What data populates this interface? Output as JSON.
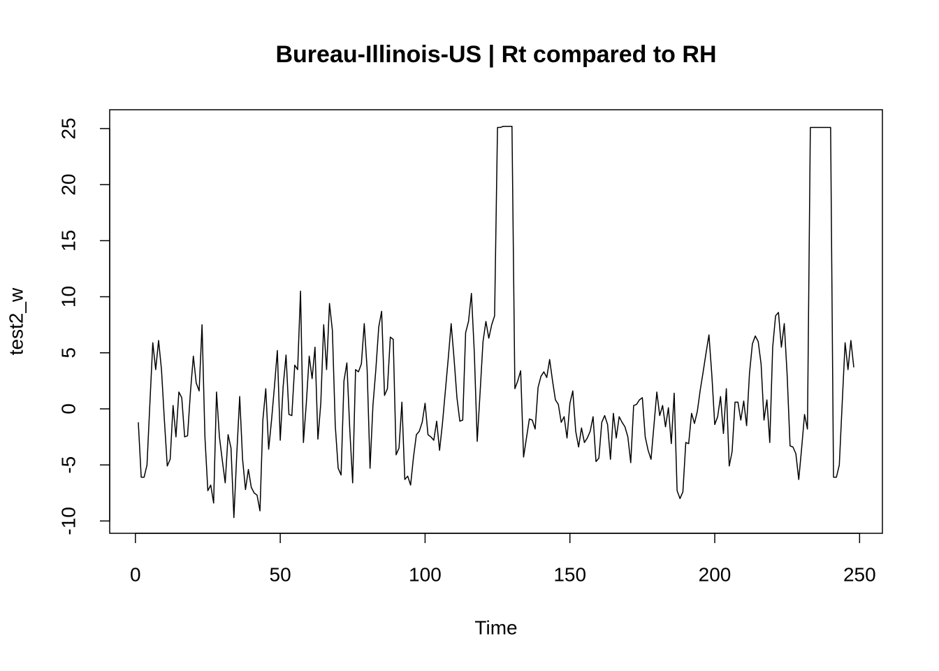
{
  "chart_data": {
    "type": "line",
    "title": "Bureau-Illinois-US | Rt compared to RH",
    "x_label": "Time",
    "y_label": "test2_w",
    "color": "#000000",
    "x": [
      1,
      2,
      3,
      4,
      5,
      6,
      7,
      8,
      9,
      10,
      11,
      12,
      13,
      14,
      15,
      16,
      17,
      18,
      19,
      20,
      21,
      22,
      23,
      24,
      25,
      26,
      27,
      28,
      29,
      30,
      31,
      32,
      33,
      34,
      35,
      36,
      37,
      38,
      39,
      40,
      41,
      42,
      43,
      44,
      45,
      46,
      47,
      48,
      49,
      50,
      51,
      52,
      53,
      54,
      55,
      56,
      57,
      58,
      59,
      60,
      61,
      62,
      63,
      64,
      65,
      66,
      67,
      68,
      69,
      70,
      71,
      72,
      73,
      74,
      75,
      76,
      77,
      78,
      79,
      80,
      81,
      82,
      83,
      84,
      85,
      86,
      87,
      88,
      89,
      90,
      91,
      92,
      93,
      94,
      95,
      96,
      97,
      98,
      99,
      100,
      101,
      102,
      103,
      104,
      105,
      106,
      107,
      108,
      109,
      110,
      111,
      112,
      113,
      114,
      115,
      116,
      117,
      118,
      119,
      120,
      121,
      122,
      123,
      124,
      125,
      126,
      127,
      128,
      129,
      130,
      131,
      132,
      133,
      134,
      135,
      136,
      137,
      138,
      139,
      140,
      141,
      142,
      143,
      144,
      145,
      146,
      147,
      148,
      149,
      150,
      151,
      152,
      153,
      154,
      155,
      156,
      157,
      158,
      159,
      160,
      161,
      162,
      163,
      164,
      165,
      166,
      167,
      168,
      169,
      170,
      171,
      172,
      173,
      174,
      175,
      176,
      177,
      178,
      179,
      180,
      181,
      182,
      183,
      184,
      185,
      186,
      187,
      188,
      189,
      190,
      191,
      192,
      193,
      194,
      195,
      196,
      197,
      198,
      199,
      200,
      201,
      202,
      203,
      204,
      205,
      206,
      207,
      208,
      209,
      210,
      211,
      212,
      213,
      214,
      215,
      216,
      217,
      218,
      219,
      220,
      221,
      222,
      223,
      224,
      225,
      226,
      227,
      228,
      229,
      230,
      231,
      232,
      233,
      234,
      235,
      236,
      237,
      238,
      239,
      240,
      241,
      242,
      243,
      244,
      245,
      246,
      247,
      248
    ],
    "values": [
      -1.2,
      -6.1,
      -6.1,
      -5,
      0.5,
      5.9,
      3.5,
      6.1,
      3.5,
      -1,
      -5.1,
      -4.5,
      0.3,
      -2.5,
      1.5,
      1,
      -2.5,
      -2.4,
      1.5,
      4.7,
      2.3,
      1.6,
      7.5,
      -2.5,
      -7.3,
      -6.8,
      -8.4,
      1.5,
      -2.5,
      -4.6,
      -6.6,
      -2.3,
      -3.5,
      -9.7,
      -4,
      1.1,
      -4.5,
      -7.2,
      -5.4,
      -7,
      -7.5,
      -7.7,
      -9.1,
      -1,
      1.8,
      -3.6,
      -1,
      2,
      5.2,
      -2.8,
      2,
      4.8,
      -0.5,
      -0.6,
      3.9,
      3.5,
      10.5,
      -3,
      0.5,
      4.7,
      2.7,
      5.5,
      -2.7,
      0.5,
      7.5,
      3.5,
      9.4,
      7,
      -1.5,
      -5.3,
      -5.9,
      2.5,
      4.1,
      -1.8,
      -6.6,
      3.5,
      3.3,
      4,
      7.6,
      3.5,
      -5.3,
      0.3,
      3.5,
      7.3,
      8.7,
      1.2,
      1.8,
      6.4,
      6.2,
      -4.1,
      -3.5,
      0.6,
      -6.3,
      -6,
      -6.8,
      -4.3,
      -2.3,
      -2,
      -1.2,
      0.5,
      -2.3,
      -2.5,
      -2.8,
      -1.1,
      -3.7,
      -1.3,
      1.6,
      4.5,
      7.6,
      4.5,
      1,
      -1.1,
      -1,
      6.8,
      7.8,
      10.3,
      5,
      -2.9,
      1.5,
      6,
      7.8,
      6.3,
      7.5,
      8.3,
      25.1,
      25.1,
      25.2,
      25.2,
      25.2,
      25.2,
      1.8,
      2.5,
      3.4,
      -4.3,
      -2.6,
      -0.9,
      -1,
      -1.8,
      1.9,
      2.9,
      3.3,
      2.8,
      4.4,
      2.5,
      0.8,
      0.4,
      -1.2,
      -0.7,
      -2.6,
      0.5,
      1.6,
      -2,
      -3.4,
      -1.7,
      -3,
      -2.6,
      -2,
      -0.7,
      -4.7,
      -4.4,
      -1.2,
      -0.6,
      -1.4,
      -4.5,
      -0.4,
      -2.6,
      -0.7,
      -1.2,
      -1.6,
      -2.5,
      -4.8,
      0.3,
      0.4,
      0.8,
      1,
      -2.5,
      -3.7,
      -4.5,
      -1.5,
      1.5,
      -0.6,
      0.3,
      -1.6,
      0.1,
      -3.1,
      1.4,
      -7.3,
      -8,
      -7.4,
      -3,
      -3.1,
      -0.4,
      -1.3,
      -0.2,
      1.7,
      3.3,
      5,
      6.6,
      3,
      -1.4,
      -0.7,
      1.1,
      -2.2,
      1.8,
      -5.1,
      -3.8,
      0.6,
      0.6,
      -1,
      0.7,
      -1.5,
      3.2,
      5.8,
      6.5,
      6,
      4,
      -1,
      0.8,
      -3,
      5.5,
      8.3,
      8.6,
      5.5,
      7.6,
      3,
      -3.3,
      -3.4,
      -4,
      -6.3,
      -3.5,
      -0.5,
      -1.8,
      25.1,
      25.1,
      25.1,
      25.1,
      25.1,
      25.1,
      25.1,
      25.1,
      -6.1,
      -6.1,
      -5,
      0.5,
      5.9,
      3.5,
      6.1,
      3.7
    ],
    "xlim": [
      -8.88,
      257.88
    ],
    "ylim": [
      -11.1,
      26.68
    ],
    "xticks": [
      0,
      50,
      100,
      150,
      200,
      250
    ],
    "yticks": [
      -10,
      -5,
      0,
      5,
      10,
      15,
      20,
      25
    ]
  }
}
